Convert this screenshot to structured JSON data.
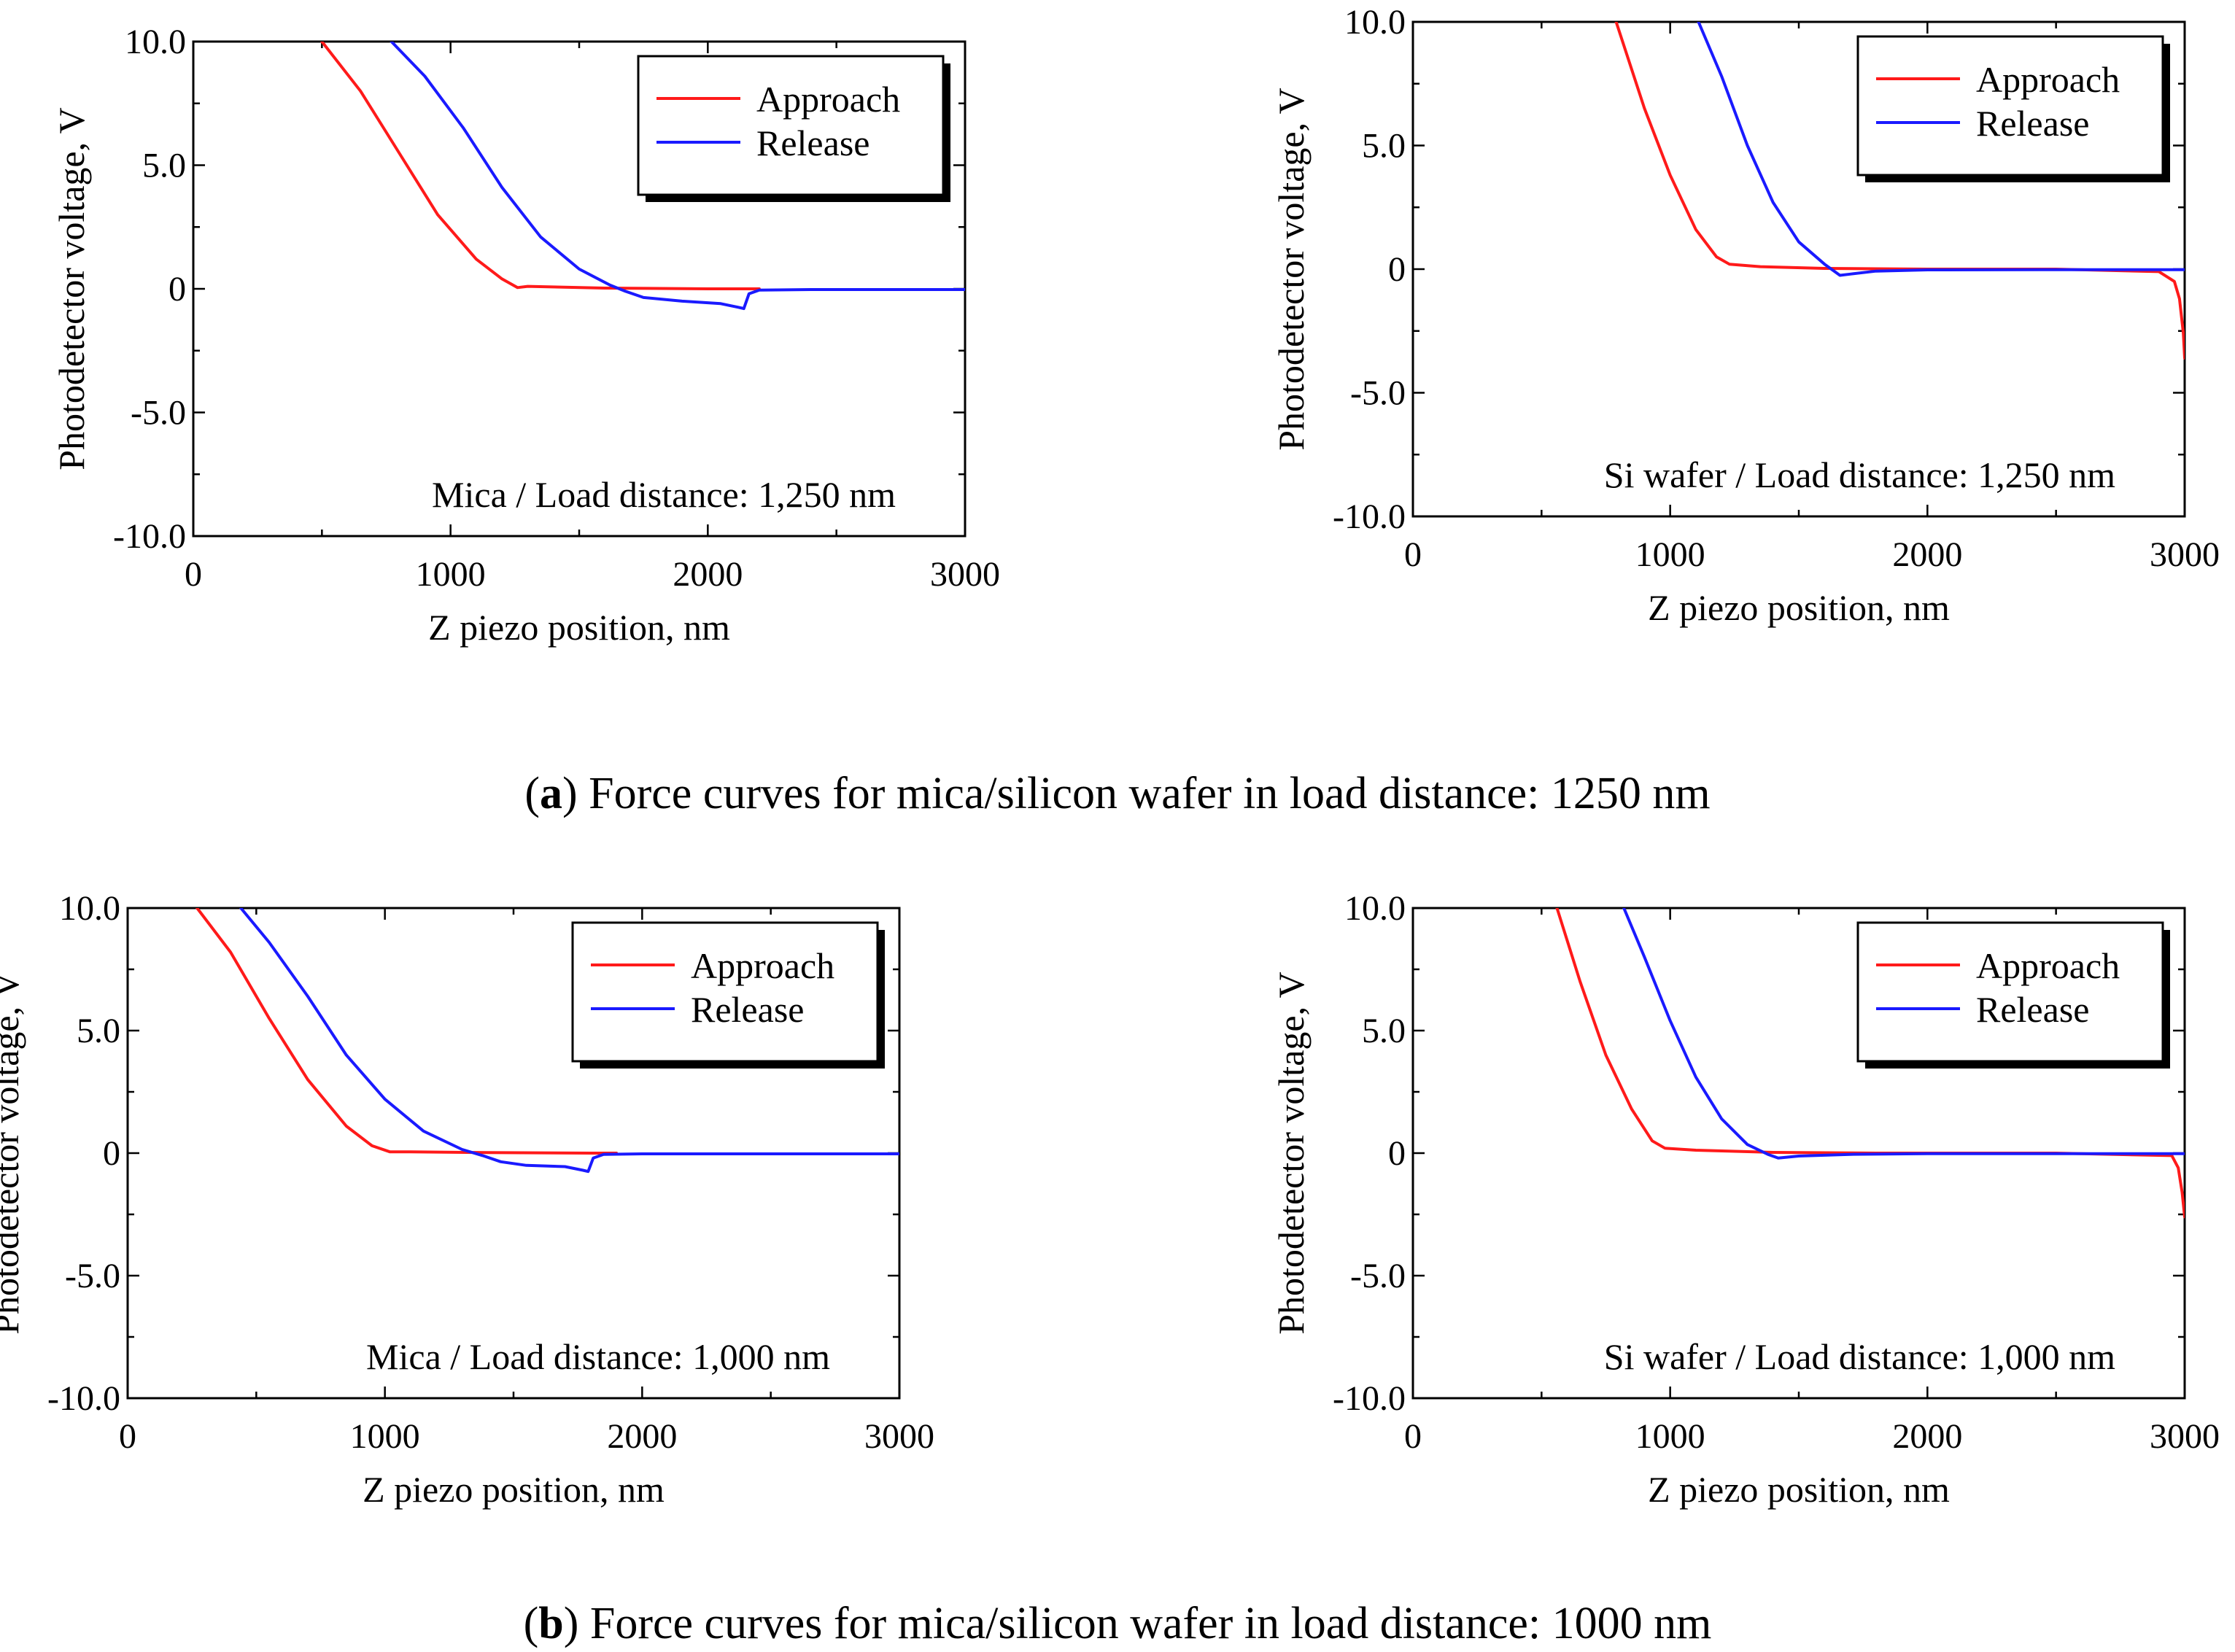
{
  "figure": {
    "caption_a": {
      "open": "(",
      "letter": "a",
      "rest": ") Force curves for mica/silicon wafer in load distance: 1250 nm"
    },
    "caption_b": {
      "open": "(",
      "letter": "b",
      "rest": ") Force curves for mica/silicon wafer in load distance: 1000 nm"
    }
  },
  "chart_data": [
    {
      "id": "a-mica",
      "type": "line",
      "xlabel": "Z piezo position, nm",
      "ylabel": "Photodetector voltage, V",
      "xlim": [
        0,
        3000
      ],
      "ylim": [
        -10,
        10
      ],
      "xticks": [
        0,
        1000,
        2000,
        3000
      ],
      "xtick_labels": [
        "0",
        "1000",
        "2000",
        "3000"
      ],
      "yticks": [
        -10,
        -5,
        0,
        5,
        10
      ],
      "ytick_labels": [
        "-10.0",
        "-5.0",
        "0",
        "5.0",
        "10.0"
      ],
      "annotation": "Mica / Load distance: 1,250 nm",
      "legend": {
        "position": "top-right",
        "entries": [
          "Approach",
          "Release"
        ]
      },
      "series": [
        {
          "name": "Approach",
          "color": "#ff1a1a",
          "x": [
            500,
            650,
            800,
            950,
            1100,
            1200,
            1260,
            1300,
            1600,
            2000,
            2200
          ],
          "y": [
            10,
            8,
            5.5,
            3,
            1.2,
            0.4,
            0.05,
            0.1,
            0.03,
            0.0,
            0.0
          ]
        },
        {
          "name": "Release",
          "color": "#1a1aff",
          "x": [
            770,
            900,
            1050,
            1200,
            1350,
            1500,
            1620,
            1680,
            1750,
            1900,
            2050,
            2120,
            2140,
            2160,
            2200,
            2400,
            3000
          ],
          "y": [
            10,
            8.6,
            6.5,
            4.1,
            2.1,
            0.8,
            0.15,
            -0.1,
            -0.35,
            -0.5,
            -0.6,
            -0.75,
            -0.8,
            -0.2,
            -0.05,
            -0.03,
            -0.03
          ]
        }
      ]
    },
    {
      "id": "a-si",
      "type": "line",
      "xlabel": "Z piezo position, nm",
      "ylabel": "Photodetector voltage, V",
      "xlim": [
        0,
        3000
      ],
      "ylim": [
        -10,
        10
      ],
      "xticks": [
        0,
        1000,
        2000,
        3000
      ],
      "xtick_labels": [
        "0",
        "1000",
        "2000",
        "3000"
      ],
      "yticks": [
        -10,
        -5,
        0,
        5,
        10
      ],
      "ytick_labels": [
        "-10.0",
        "-5.0",
        "0",
        "5.0",
        "10.0"
      ],
      "annotation": "Si wafer / Load distance: 1,250 nm",
      "legend": {
        "position": "top-right",
        "entries": [
          "Approach",
          "Release"
        ]
      },
      "series": [
        {
          "name": "Approach",
          "color": "#ff1a1a",
          "x": [
            790,
            900,
            1000,
            1100,
            1180,
            1230,
            1350,
            1600,
            2000,
            2500,
            2900,
            2960,
            2980,
            2995,
            3000
          ],
          "y": [
            10,
            6.5,
            3.8,
            1.6,
            0.5,
            0.2,
            0.1,
            0.03,
            0.0,
            0.0,
            -0.1,
            -0.5,
            -1.2,
            -2.6,
            -3.6
          ]
        },
        {
          "name": "Release",
          "color": "#1a1aff",
          "x": [
            1110,
            1200,
            1300,
            1400,
            1500,
            1600,
            1660,
            1700,
            1800,
            2000,
            2500,
            3000
          ],
          "y": [
            10,
            7.8,
            5.0,
            2.7,
            1.1,
            0.2,
            -0.25,
            -0.2,
            -0.08,
            -0.03,
            -0.02,
            -0.02
          ]
        }
      ]
    },
    {
      "id": "b-mica",
      "type": "line",
      "xlabel": "Z piezo position, nm",
      "ylabel": "Photodetector voltage, V",
      "xlim": [
        0,
        3000
      ],
      "ylim": [
        -10,
        10
      ],
      "xticks": [
        0,
        1000,
        2000,
        3000
      ],
      "xtick_labels": [
        "0",
        "1000",
        "2000",
        "3000"
      ],
      "yticks": [
        -10,
        -5,
        0,
        5,
        10
      ],
      "ytick_labels": [
        "-10.0",
        "-5.0",
        "0",
        "5.0",
        "10.0"
      ],
      "annotation": "Mica / Load distance: 1,000 nm",
      "legend": {
        "position": "top-right",
        "entries": [
          "Approach",
          "Release"
        ]
      },
      "series": [
        {
          "name": "Approach",
          "color": "#ff1a1a",
          "x": [
            270,
            400,
            550,
            700,
            850,
            950,
            1020,
            1100,
            1400,
            1800,
            1900
          ],
          "y": [
            10,
            8.2,
            5.5,
            3.0,
            1.1,
            0.3,
            0.05,
            0.05,
            0.02,
            0.0,
            0.0
          ]
        },
        {
          "name": "Release",
          "color": "#1a1aff",
          "x": [
            440,
            550,
            700,
            850,
            1000,
            1150,
            1300,
            1380,
            1450,
            1550,
            1700,
            1770,
            1790,
            1810,
            1850,
            2000,
            3000
          ],
          "y": [
            10,
            8.6,
            6.4,
            4.0,
            2.2,
            0.9,
            0.15,
            -0.1,
            -0.35,
            -0.5,
            -0.55,
            -0.7,
            -0.75,
            -0.2,
            -0.05,
            -0.03,
            -0.03
          ]
        }
      ]
    },
    {
      "id": "b-si",
      "type": "line",
      "xlabel": "Z piezo position, nm",
      "ylabel": "Photodetector voltage, V",
      "xlim": [
        0,
        3000
      ],
      "ylim": [
        -10,
        10
      ],
      "xticks": [
        0,
        1000,
        2000,
        3000
      ],
      "xtick_labels": [
        "0",
        "1000",
        "2000",
        "3000"
      ],
      "yticks": [
        -10,
        -5,
        0,
        5,
        10
      ],
      "ytick_labels": [
        "-10.0",
        "-5.0",
        "0",
        "5.0",
        "10.0"
      ],
      "annotation": "Si wafer / Load distance: 1,000 nm",
      "legend": {
        "position": "top-right",
        "entries": [
          "Approach",
          "Release"
        ]
      },
      "series": [
        {
          "name": "Approach",
          "color": "#ff1a1a",
          "x": [
            560,
            650,
            750,
            850,
            930,
            980,
            1100,
            1400,
            1800,
            2500,
            2950,
            2975,
            2990,
            3000
          ],
          "y": [
            10,
            7.0,
            4.0,
            1.8,
            0.5,
            0.2,
            0.12,
            0.03,
            0.0,
            0.0,
            -0.1,
            -0.6,
            -1.6,
            -2.6
          ]
        },
        {
          "name": "Release",
          "color": "#1a1aff",
          "x": [
            820,
            900,
            1000,
            1100,
            1200,
            1300,
            1380,
            1420,
            1500,
            1700,
            2000,
            3000
          ],
          "y": [
            10,
            8.0,
            5.4,
            3.1,
            1.4,
            0.35,
            -0.05,
            -0.2,
            -0.12,
            -0.05,
            -0.02,
            -0.02
          ]
        }
      ]
    }
  ]
}
